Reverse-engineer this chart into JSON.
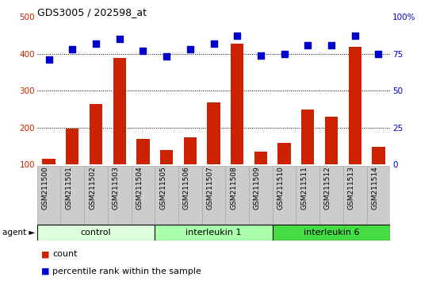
{
  "title": "GDS3005 / 202598_at",
  "samples": [
    "GSM211500",
    "GSM211501",
    "GSM211502",
    "GSM211503",
    "GSM211504",
    "GSM211505",
    "GSM211506",
    "GSM211507",
    "GSM211508",
    "GSM211509",
    "GSM211510",
    "GSM211511",
    "GSM211512",
    "GSM211513",
    "GSM211514"
  ],
  "counts": [
    115,
    197,
    263,
    388,
    168,
    138,
    173,
    268,
    427,
    135,
    158,
    248,
    229,
    418,
    147
  ],
  "percentile_ranks": [
    71,
    78,
    82,
    85,
    77,
    73,
    78,
    82,
    87,
    74,
    75,
    81,
    81,
    87,
    75
  ],
  "bar_color": "#cc2200",
  "dot_color": "#0000cc",
  "ylim_left": [
    100,
    500
  ],
  "ylim_right": [
    0,
    100
  ],
  "yticks_left": [
    100,
    200,
    300,
    400,
    500
  ],
  "yticks_right": [
    0,
    25,
    50,
    75,
    100
  ],
  "groups": [
    {
      "label": "control",
      "start": 0,
      "end": 5,
      "color": "#ddffdd"
    },
    {
      "label": "interleukin 1",
      "start": 5,
      "end": 10,
      "color": "#aaffaa"
    },
    {
      "label": "interleukin 6",
      "start": 10,
      "end": 15,
      "color": "#44dd44"
    }
  ],
  "agent_label": "agent",
  "legend_count_label": "count",
  "legend_pct_label": "percentile rank within the sample",
  "bar_color_left_axis": "#cc2200",
  "dot_color_right_axis": "#0000cc",
  "bg_color": "#ffffff",
  "tick_label_bg": "#cccccc",
  "tick_label_border": "#aaaaaa",
  "group_border": "#000000",
  "dot_size": 28
}
